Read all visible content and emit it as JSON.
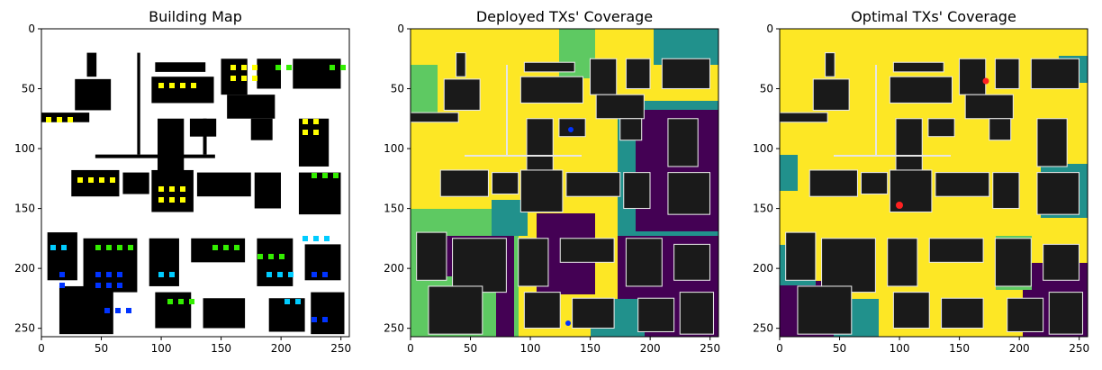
{
  "panels": [
    {
      "id": "building-map",
      "title": "Building Map",
      "x_ticks": [
        "0",
        "50",
        "100",
        "150",
        "200",
        "250"
      ],
      "y_ticks": [
        "0",
        "50",
        "100",
        "150",
        "200",
        "250"
      ],
      "image_content": "building footprints with colored receiver markers"
    },
    {
      "id": "deployed-coverage",
      "title": "Deployed TXs' Coverage",
      "x_ticks": [
        "0",
        "50",
        "100",
        "150",
        "200",
        "250"
      ],
      "y_ticks": [
        "0",
        "50",
        "100",
        "150",
        "200",
        "250"
      ],
      "image_content": "coverage heatmap (viridis-like) with buildings overlaid"
    },
    {
      "id": "optimal-coverage",
      "title": "Optimal TXs' Coverage",
      "x_ticks": [
        "0",
        "50",
        "100",
        "150",
        "200",
        "250"
      ],
      "y_ticks": [
        "0",
        "50",
        "100",
        "150",
        "200",
        "250"
      ],
      "image_content": "coverage heatmap (viridis-like) with buildings overlaid"
    }
  ],
  "colors": {
    "coverage_high": "#fde725",
    "coverage_mid_high": "#5ec962",
    "coverage_mid": "#21918c",
    "coverage_low": "#440154",
    "building": "#1a1a1a",
    "building_outline": "#e6e6e6",
    "marker_yellow": "#ffff00",
    "marker_green": "#33ee00",
    "marker_cyan": "#00ccff",
    "marker_blue": "#0033ff",
    "tx_red": "#ff2020"
  }
}
